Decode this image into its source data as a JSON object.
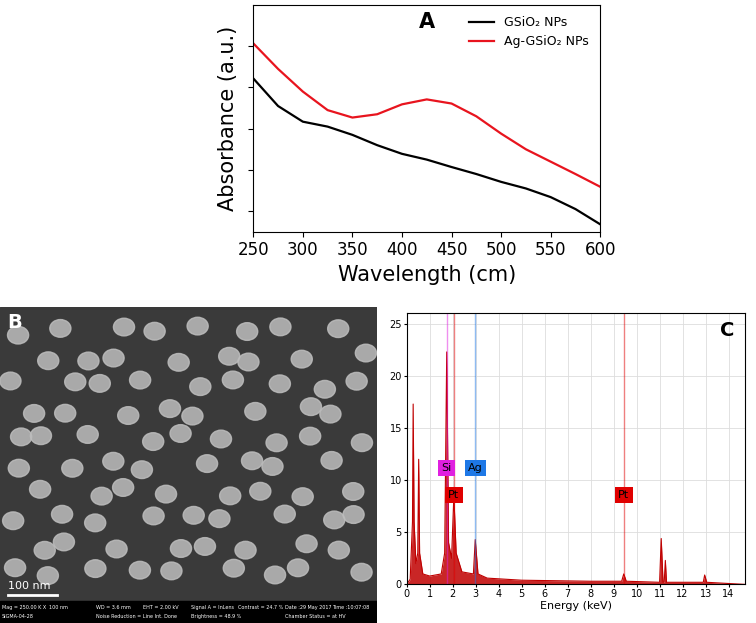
{
  "chart_data": [
    {
      "type": "line",
      "panel": "A",
      "x_label": "Wavelength (cm)",
      "y_label": "Absorbance (a.u.)",
      "x": [
        250,
        275,
        300,
        325,
        350,
        375,
        400,
        425,
        450,
        475,
        500,
        525,
        550,
        575,
        600
      ],
      "series": [
        {
          "name": "GSiO₂ NPs",
          "color": "#000000",
          "values": [
            4.22,
            3.55,
            3.17,
            3.05,
            2.85,
            2.6,
            2.39,
            2.25,
            2.07,
            1.9,
            1.71,
            1.55,
            1.34,
            1.05,
            0.68
          ]
        },
        {
          "name": "Ag-GSiO₂ NPs",
          "color": "#e8141e",
          "values": [
            5.07,
            4.45,
            3.9,
            3.45,
            3.27,
            3.35,
            3.59,
            3.71,
            3.61,
            3.3,
            2.88,
            2.5,
            2.2,
            1.9,
            1.59
          ]
        }
      ],
      "xlim": [
        250,
        600
      ],
      "xticks": [
        250,
        300,
        350,
        400,
        450,
        500,
        550,
        600
      ],
      "ylim": [
        0.5,
        6.0
      ],
      "yticks": [
        1,
        2,
        3,
        4,
        5
      ],
      "tick_labels": "x",
      "legend": "upper right",
      "grid": false
    },
    {
      "type": "area",
      "panel": "C",
      "x_label": "Energy (keV)",
      "x": [
        0.0,
        0.15,
        0.25,
        0.28,
        0.32,
        0.4,
        0.48,
        0.52,
        0.56,
        0.7,
        1.0,
        1.5,
        1.65,
        1.74,
        1.82,
        1.95,
        2.05,
        2.15,
        2.4,
        2.9,
        2.98,
        3.1,
        3.5,
        5.0,
        8.0,
        9.35,
        9.44,
        9.55,
        11.0,
        11.07,
        11.15,
        11.2,
        11.25,
        11.3,
        12.9,
        12.96,
        13.05,
        14.7
      ],
      "values": [
        0,
        0.5,
        6,
        17.3,
        6,
        2,
        3,
        12,
        3,
        1,
        0.8,
        1,
        3,
        22.3,
        4,
        2.5,
        8.5,
        3,
        1.2,
        1,
        4.3,
        1,
        0.6,
        0.4,
        0.3,
        0.3,
        1.0,
        0.3,
        0.2,
        4.4,
        0.2,
        0.2,
        2.3,
        0.2,
        0.2,
        0.9,
        0.2,
        0
      ],
      "color": "#c00000",
      "element_labels": [
        {
          "label": "Si",
          "energy": 1.74,
          "color": "#e020e0"
        },
        {
          "label": "Pt",
          "energy": 2.05,
          "color": "#e00000"
        },
        {
          "label": "Ag",
          "energy": 2.98,
          "color": "#1e78e6"
        },
        {
          "label": "Pt",
          "energy": 9.44,
          "color": "#e00000"
        }
      ],
      "xlim": [
        0,
        14.7
      ],
      "xticks": [
        0,
        1,
        2,
        3,
        4,
        5,
        6,
        7,
        8,
        9,
        10,
        11,
        12,
        13,
        14
      ],
      "ylim": [
        0,
        26
      ],
      "yticks": [
        0,
        5,
        10,
        15,
        20,
        25
      ],
      "grid": true
    }
  ],
  "image_panel": {
    "panel": "B",
    "scale_bar": "100 nm",
    "info_rows": [
      [
        "Mag = 250.00 K X",
        "100 nm",
        "WD = 3.6 mm",
        "EHT = 2.00 kV",
        "Signal A = InLens",
        "Contrast = 24.7 %",
        "Date :29 May 2017",
        "Time :10:07:08"
      ],
      [
        "SIGMA-04-28",
        "Noise Reduction = Line Int. Done",
        "Brightness = 48.9 %",
        "Chamber Status = at HV"
      ]
    ]
  }
}
